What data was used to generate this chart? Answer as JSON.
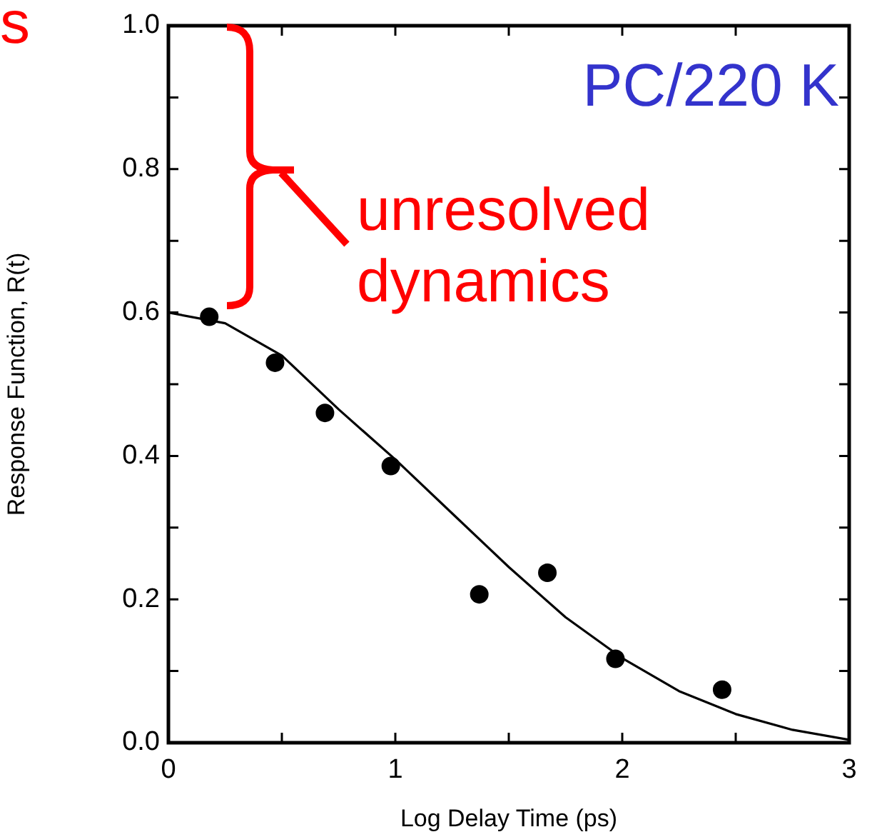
{
  "chart_data": {
    "type": "scatter",
    "xlabel": "Log Delay Time (ps)",
    "ylabel": "Response Function, R(t)",
    "annotations": [
      "s",
      "PC/220 K",
      "unresolved dynamics"
    ],
    "xlim": [
      0,
      3
    ],
    "ylim": [
      0,
      1.0
    ],
    "xticks": [
      0,
      {
        "value": 0.5,
        "label": null
      },
      1,
      {
        "value": 1.5,
        "label": null
      },
      2,
      {
        "value": 2.5,
        "label": null
      },
      3
    ],
    "yticks": [
      {
        "value": 0,
        "label": "0.0"
      },
      {
        "value": 0.1,
        "label": null
      },
      {
        "value": 0.2,
        "label": "0.2"
      },
      {
        "value": 0.3,
        "label": null
      },
      {
        "value": 0.4,
        "label": "0.4"
      },
      {
        "value": 0.5,
        "label": null
      },
      {
        "value": 0.6,
        "label": "0.6"
      },
      {
        "value": 0.7,
        "label": null
      },
      {
        "value": 0.8,
        "label": "0.8"
      },
      {
        "value": 0.9,
        "label": null
      },
      {
        "value": 1.0,
        "label": "1.0"
      }
    ],
    "grid": false,
    "legend": false,
    "series": [
      {
        "color": "#000000",
        "marker": "circle",
        "x": [
          0.18,
          0.47,
          0.69,
          0.98,
          1.37,
          1.67,
          1.97,
          2.44
        ],
        "values": [
          0.594,
          0.53,
          0.46,
          0.386,
          0.207,
          0.237,
          0.117,
          0.074
        ]
      },
      {
        "type": "line",
        "color": "#000000",
        "marker": "none",
        "x": [
          0,
          0.25,
          0.5,
          0.75,
          1.0,
          1.25,
          1.5,
          1.75,
          2.0,
          2.25,
          2.5,
          2.75,
          3.0
        ],
        "values": [
          0.6,
          0.585,
          0.54,
          0.465,
          0.395,
          0.32,
          0.245,
          0.175,
          0.118,
          0.072,
          0.04,
          0.018,
          0.004
        ]
      }
    ]
  }
}
